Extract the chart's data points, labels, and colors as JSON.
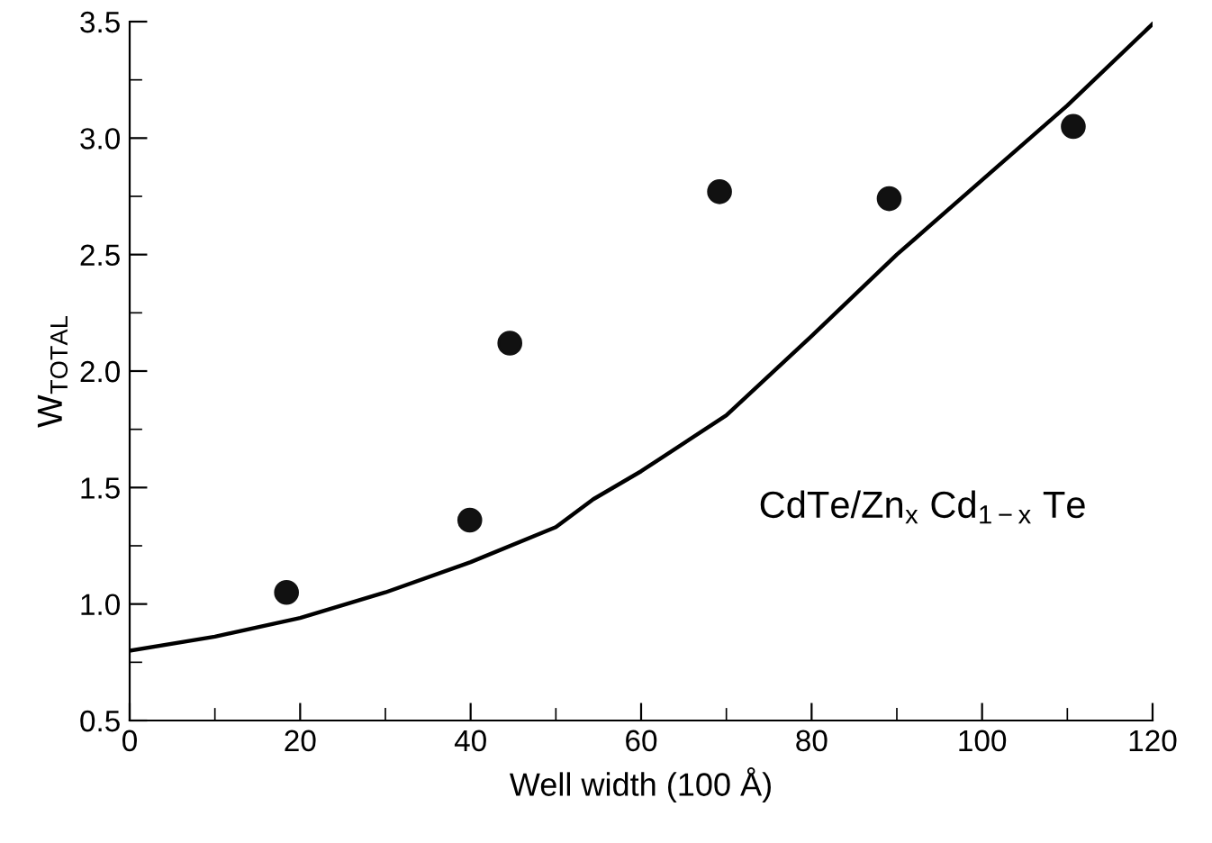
{
  "chart_data": {
    "type": "scatter",
    "xlabel": "Well width (100 Å)",
    "ylabel": "W$_{TOTAL}$",
    "series": [
      {
        "color": "#111111",
        "marker": "circle",
        "x": [
          18.4,
          39.9,
          44.6,
          69.2,
          89.1,
          110.7
        ],
        "values": [
          1.05,
          1.36,
          2.12,
          2.77,
          2.74,
          3.05
        ]
      },
      {
        "type": "line",
        "color": "#000000",
        "marker": "none",
        "line_style": "solid",
        "x": [
          0,
          10,
          20,
          30,
          40,
          50,
          54.4,
          60,
          70,
          80,
          90,
          100,
          110,
          120
        ],
        "values": [
          0.8,
          0.86,
          0.94,
          1.05,
          1.18,
          1.33,
          1.45,
          1.57,
          1.81,
          2.15,
          2.5,
          2.82,
          3.14,
          3.49
        ]
      }
    ],
    "annotations": [
      "CdTe/Zn$_{x}$ Cd$_{1−x}$ Te"
    ],
    "xlim": [
      0,
      120
    ],
    "ylim": [
      0.5,
      3.5
    ],
    "xticks": [
      0,
      {
        "value": 10,
        "label": null
      },
      20,
      {
        "value": 30,
        "label": null
      },
      40,
      {
        "value": 50,
        "label": null
      },
      60,
      {
        "value": 70,
        "label": null
      },
      80,
      {
        "value": 90,
        "label": null
      },
      100,
      {
        "value": 110,
        "label": null
      },
      120
    ],
    "yticks": [
      0.5,
      {
        "value": 0.75,
        "label": null
      },
      {
        "value": 1,
        "label": "1.0"
      },
      {
        "value": 1.25,
        "label": null
      },
      1.5,
      {
        "value": 1.75,
        "label": null
      },
      {
        "value": 2,
        "label": "2.0"
      },
      {
        "value": 2.25,
        "label": null
      },
      2.5,
      {
        "value": 2.75,
        "label": null
      },
      {
        "value": 3,
        "label": "3.0"
      },
      {
        "value": 3.25,
        "label": null
      },
      3.5
    ],
    "grid": false,
    "legend": false
  }
}
